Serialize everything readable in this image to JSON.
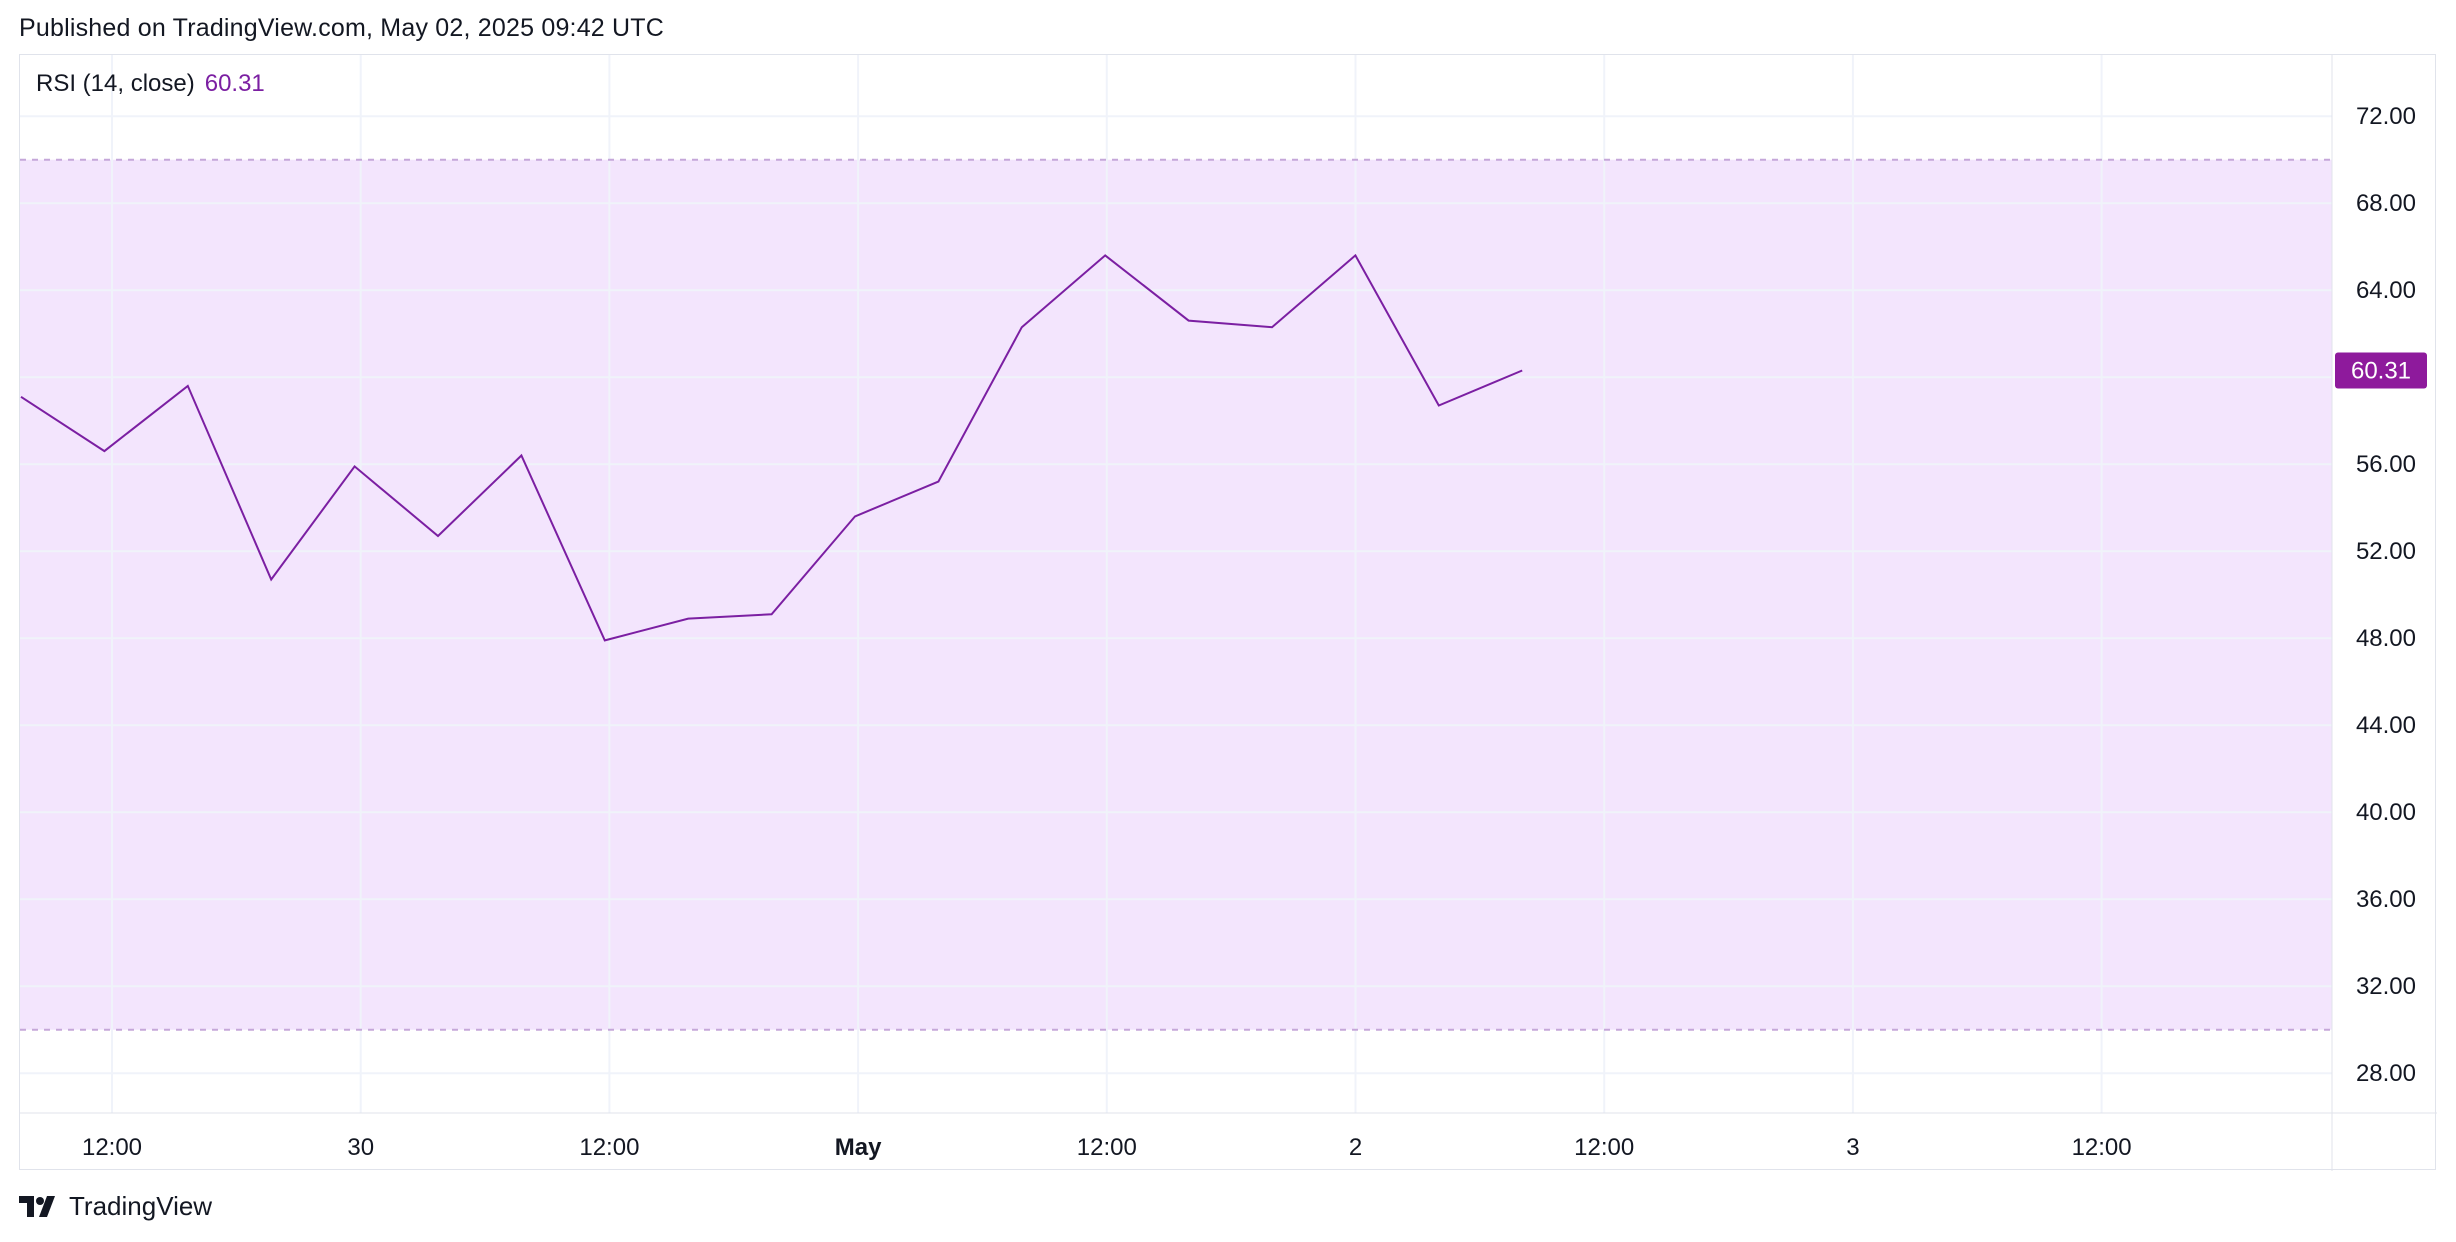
{
  "header": {
    "published": "Published on TradingView.com, May 02, 2025 09:42 UTC"
  },
  "legend": {
    "name": "RSI (14, close)",
    "value": "60.31"
  },
  "brand": {
    "name": "TradingView"
  },
  "colors": {
    "line": "#7b1fa2",
    "band_fill": "#f3e5fd",
    "band_edge": "#c5a7d9",
    "grid": "#f0f3fa",
    "label_bg": "#8e1a9c",
    "text": "#131722"
  },
  "chart_data": {
    "type": "line",
    "series": [
      {
        "name": "RSI (14, close)",
        "values": [
          59.1,
          56.6,
          59.6,
          50.7,
          55.9,
          52.7,
          56.4,
          47.9,
          48.9,
          49.1,
          53.6,
          55.2,
          62.3,
          65.6,
          62.6,
          62.3,
          65.6,
          58.7,
          60.31
        ]
      }
    ],
    "last_value_label": "60.31",
    "ylim": [
      26,
      74
    ],
    "y_ticks": [
      "72.00",
      "68.00",
      "64.00",
      "60.00",
      "56.00",
      "52.00",
      "48.00",
      "44.00",
      "40.00",
      "36.00",
      "32.00",
      "28.00"
    ],
    "y_tick_values": [
      72,
      68,
      64,
      60,
      56,
      52,
      48,
      44,
      40,
      36,
      32,
      28
    ],
    "bands": {
      "upper": 70,
      "lower": 30
    },
    "x_ticks": [
      "12:00",
      "30",
      "12:00",
      "May",
      "12:00",
      "2",
      "12:00",
      "3",
      "12:00"
    ],
    "x_tick_bold": [
      false,
      false,
      false,
      true,
      false,
      false,
      false,
      false,
      false
    ],
    "grid": true
  }
}
